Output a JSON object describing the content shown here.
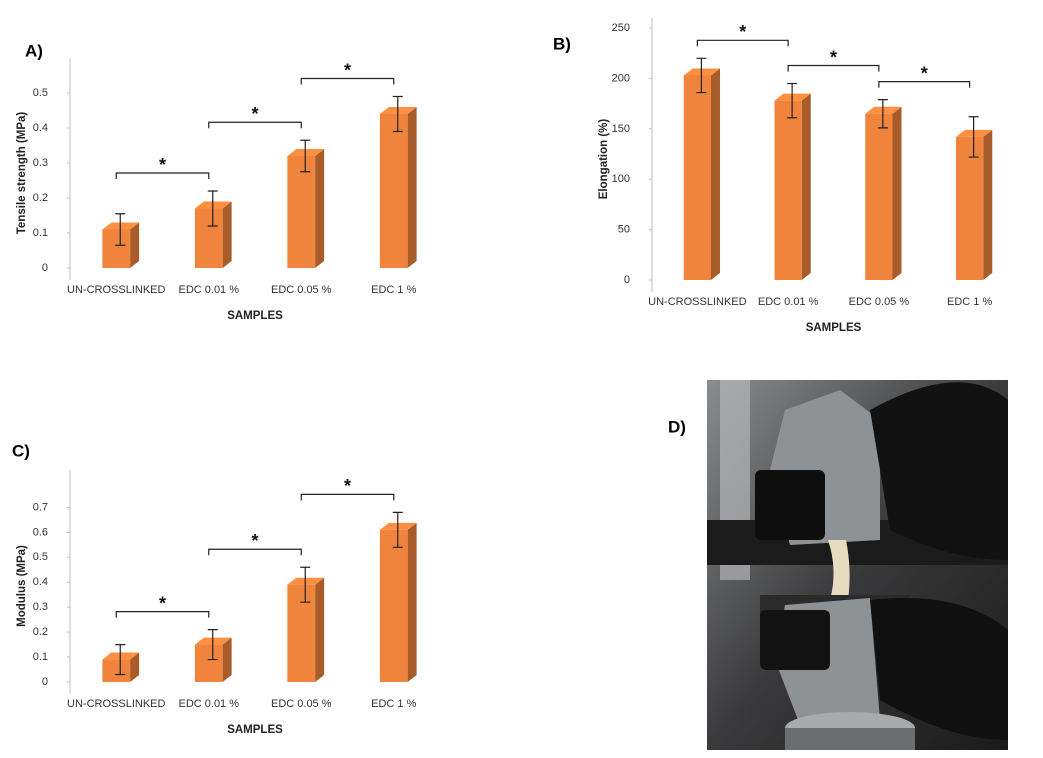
{
  "chart_data": [
    {
      "type": "bar",
      "label": "A)",
      "y_label": "Tensile strength (MPa)",
      "x_label": "SAMPLES",
      "categories": [
        "UN-CROSSLINKED",
        "EDC 0.01 %",
        "EDC 0.05 %",
        "EDC 1 %"
      ],
      "values": [
        0.11,
        0.17,
        0.32,
        0.44
      ],
      "errors": [
        0.045,
        0.05,
        0.045,
        0.05
      ],
      "color": "#f0843c",
      "ylim": [
        0,
        0.6
      ],
      "yticks": [
        0,
        0.1,
        0.2,
        0.3,
        0.4,
        0.5
      ],
      "annotations": [
        "*",
        "*",
        "*"
      ]
    },
    {
      "type": "bar",
      "label": "B)",
      "y_label": "Elongation (%)",
      "x_label": "SAMPLES",
      "categories": [
        "UN-CROSSLINKED",
        "EDC 0.01 %",
        "EDC 0.05 %",
        "EDC 1 %"
      ],
      "values": [
        203,
        178,
        165,
        142
      ],
      "errors": [
        17,
        17,
        14,
        20
      ],
      "color": "#f0843c",
      "ylim": [
        0,
        260
      ],
      "yticks": [
        0,
        50,
        100,
        150,
        200,
        250
      ],
      "annotations": [
        "*",
        "*",
        "*"
      ]
    },
    {
      "type": "bar",
      "label": "C)",
      "y_label": "Modulus (MPa)",
      "x_label": "SAMPLES",
      "categories": [
        "UN-CROSSLINKED",
        "EDC 0.01 %",
        "EDC 0.05 %",
        "EDC 1 %"
      ],
      "values": [
        0.09,
        0.15,
        0.39,
        0.61
      ],
      "errors": [
        0.06,
        0.06,
        0.07,
        0.07
      ],
      "color": "#f0843c",
      "ylim": [
        0,
        0.85
      ],
      "yticks": [
        0,
        0.1,
        0.2,
        0.3,
        0.4,
        0.5,
        0.6,
        0.7
      ],
      "annotations": [
        "*",
        "*",
        "*"
      ]
    }
  ],
  "photo": {
    "label": "D)"
  }
}
